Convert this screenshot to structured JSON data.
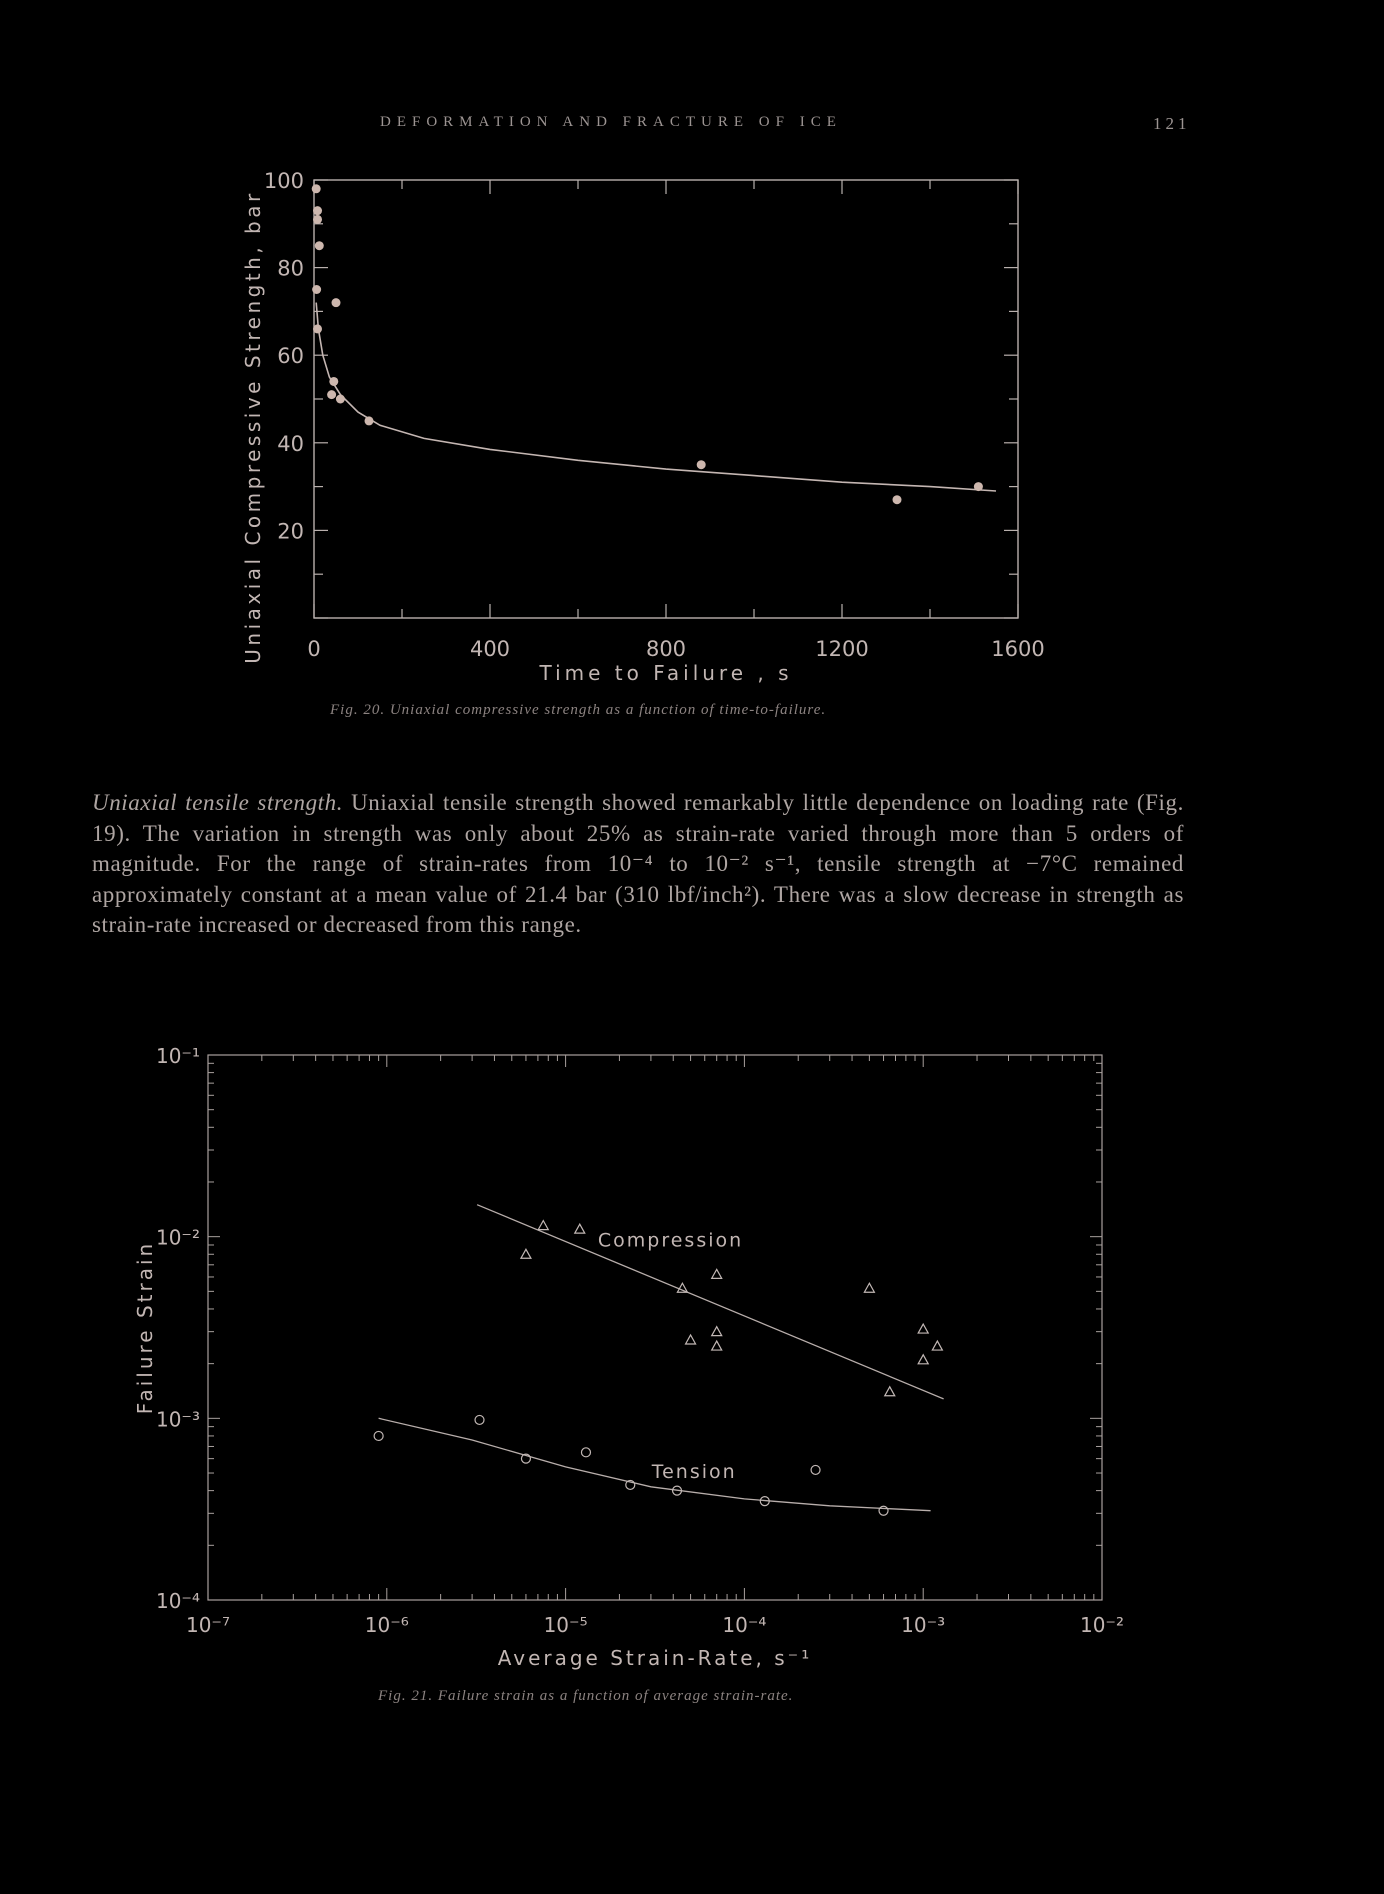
{
  "header": {
    "running_head": "DEFORMATION AND FRACTURE OF ICE",
    "page_number": "121"
  },
  "figure20": {
    "caption": "Fig. 20. Uniaxial compressive strength as a function of time-to-failure.",
    "chart_data": {
      "type": "scatter",
      "xlabel": "Time to Failure , s",
      "ylabel": "Uniaxial Compressive Strength, bar",
      "xlim": [
        0,
        1600
      ],
      "ylim": [
        0,
        100
      ],
      "x_ticks": [
        0,
        400,
        800,
        1200,
        1600
      ],
      "y_ticks": [
        20,
        40,
        60,
        80,
        100
      ],
      "points": [
        {
          "x": 5,
          "y": 98
        },
        {
          "x": 8,
          "y": 93
        },
        {
          "x": 8,
          "y": 91
        },
        {
          "x": 12,
          "y": 85
        },
        {
          "x": 6,
          "y": 75
        },
        {
          "x": 8,
          "y": 66
        },
        {
          "x": 50,
          "y": 72
        },
        {
          "x": 45,
          "y": 54
        },
        {
          "x": 40,
          "y": 51
        },
        {
          "x": 60,
          "y": 50
        },
        {
          "x": 125,
          "y": 45
        },
        {
          "x": 880,
          "y": 35
        },
        {
          "x": 1325,
          "y": 27
        },
        {
          "x": 1510,
          "y": 30
        }
      ],
      "fit_curve": [
        [
          5,
          72
        ],
        [
          10,
          66
        ],
        [
          20,
          60
        ],
        [
          35,
          55
        ],
        [
          60,
          51
        ],
        [
          100,
          47
        ],
        [
          150,
          44
        ],
        [
          250,
          41
        ],
        [
          400,
          38.5
        ],
        [
          600,
          36
        ],
        [
          800,
          34
        ],
        [
          1000,
          32.5
        ],
        [
          1200,
          31
        ],
        [
          1400,
          30
        ],
        [
          1550,
          29
        ]
      ]
    }
  },
  "paragraph": {
    "title": "Uniaxial tensile strength.",
    "text": "Uniaxial tensile strength showed remarkably little dependence on loading rate (Fig. 19). The variation in strength was only about 25% as strain-rate varied through more than 5 orders of magnitude. For the range of strain-rates from 10⁻⁴ to 10⁻² s⁻¹, tensile strength at −7°C remained approximately constant at a mean value of 21.4 bar (310 lbf/inch²). There was a slow decrease in strength as strain-rate increased or decreased from this range."
  },
  "figure21": {
    "caption": "Fig. 21. Failure strain as a function of average strain-rate.",
    "chart_data": {
      "type": "scatter",
      "xlabel": "Average Strain-Rate, s⁻¹",
      "ylabel": "Failure Strain",
      "x_scale": "log",
      "y_scale": "log",
      "xlim": [
        1e-07,
        0.01
      ],
      "ylim": [
        0.0001,
        0.1
      ],
      "x_tick_labels": [
        "10⁻⁷",
        "10⁻⁶",
        "10⁻⁵",
        "10⁻⁴",
        "10⁻³",
        "10⁻²"
      ],
      "y_tick_labels": [
        "10⁻¹",
        "10⁻²",
        "10⁻³",
        "10⁻⁴"
      ],
      "series": [
        {
          "name": "Compression",
          "marker": "triangle",
          "points": [
            [
              7.5e-06,
              0.0115
            ],
            [
              1.2e-05,
              0.011
            ],
            [
              6e-06,
              0.008
            ],
            [
              4.5e-05,
              0.0052
            ],
            [
              7e-05,
              0.0062
            ],
            [
              5e-05,
              0.0027
            ],
            [
              7e-05,
              0.003
            ],
            [
              7e-05,
              0.0025
            ],
            [
              0.0005,
              0.0052
            ],
            [
              0.00065,
              0.0014
            ],
            [
              0.001,
              0.0031
            ],
            [
              0.0012,
              0.0025
            ],
            [
              0.001,
              0.0021
            ]
          ],
          "fit": [
            [
              3.2e-06,
              0.015
            ],
            [
              0.0013,
              0.00128
            ]
          ]
        },
        {
          "name": "Tension",
          "marker": "circle",
          "points": [
            [
              9e-07,
              0.0008
            ],
            [
              3.3e-06,
              0.00098
            ],
            [
              6e-06,
              0.0006
            ],
            [
              1.3e-05,
              0.00065
            ],
            [
              2.3e-05,
              0.00043
            ],
            [
              4.2e-05,
              0.0004
            ],
            [
              0.00013,
              0.00035
            ],
            [
              0.0006,
              0.00031
            ],
            [
              0.00025,
              0.00052
            ]
          ],
          "fit": [
            [
              9e-07,
              0.001
            ],
            [
              3e-06,
              0.00076
            ],
            [
              1e-05,
              0.00054
            ],
            [
              3e-05,
              0.00042
            ],
            [
              0.0001,
              0.00036
            ],
            [
              0.0003,
              0.00033
            ],
            [
              0.0011,
              0.00031
            ]
          ]
        }
      ]
    }
  }
}
